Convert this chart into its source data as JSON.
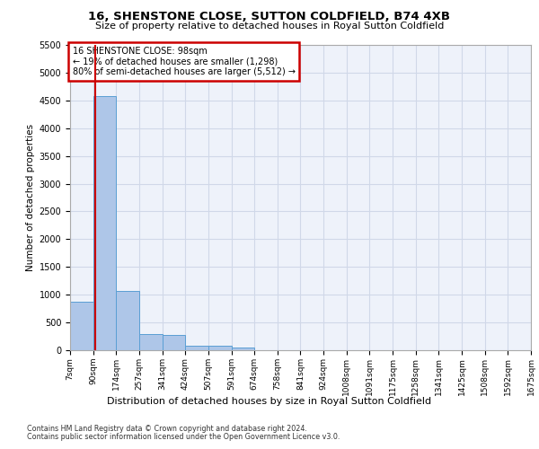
{
  "title1": "16, SHENSTONE CLOSE, SUTTON COLDFIELD, B74 4XB",
  "title2": "Size of property relative to detached houses in Royal Sutton Coldfield",
  "xlabel": "Distribution of detached houses by size in Royal Sutton Coldfield",
  "ylabel": "Number of detached properties",
  "footnote1": "Contains HM Land Registry data © Crown copyright and database right 2024.",
  "footnote2": "Contains public sector information licensed under the Open Government Licence v3.0.",
  "annotation_line1": "16 SHENSTONE CLOSE: 98sqm",
  "annotation_line2": "← 19% of detached houses are smaller (1,298)",
  "annotation_line3": "80% of semi-detached houses are larger (5,512) →",
  "property_size": 98,
  "bar_edges": [
    7,
    90,
    174,
    257,
    341,
    424,
    507,
    591,
    674,
    758,
    841,
    924,
    1008,
    1091,
    1175,
    1258,
    1341,
    1425,
    1508,
    1592,
    1675
  ],
  "bar_heights": [
    880,
    4570,
    1060,
    290,
    280,
    80,
    80,
    50,
    0,
    0,
    0,
    0,
    0,
    0,
    0,
    0,
    0,
    0,
    0,
    0
  ],
  "bar_color": "#aec6e8",
  "bar_edge_color": "#5a9fd4",
  "vline_color": "#cc0000",
  "annotation_box_color": "#cc0000",
  "grid_color": "#d0d8e8",
  "bg_color": "#eef2fa",
  "ylim": [
    0,
    5500
  ],
  "yticks": [
    0,
    500,
    1000,
    1500,
    2000,
    2500,
    3000,
    3500,
    4000,
    4500,
    5000,
    5500
  ]
}
